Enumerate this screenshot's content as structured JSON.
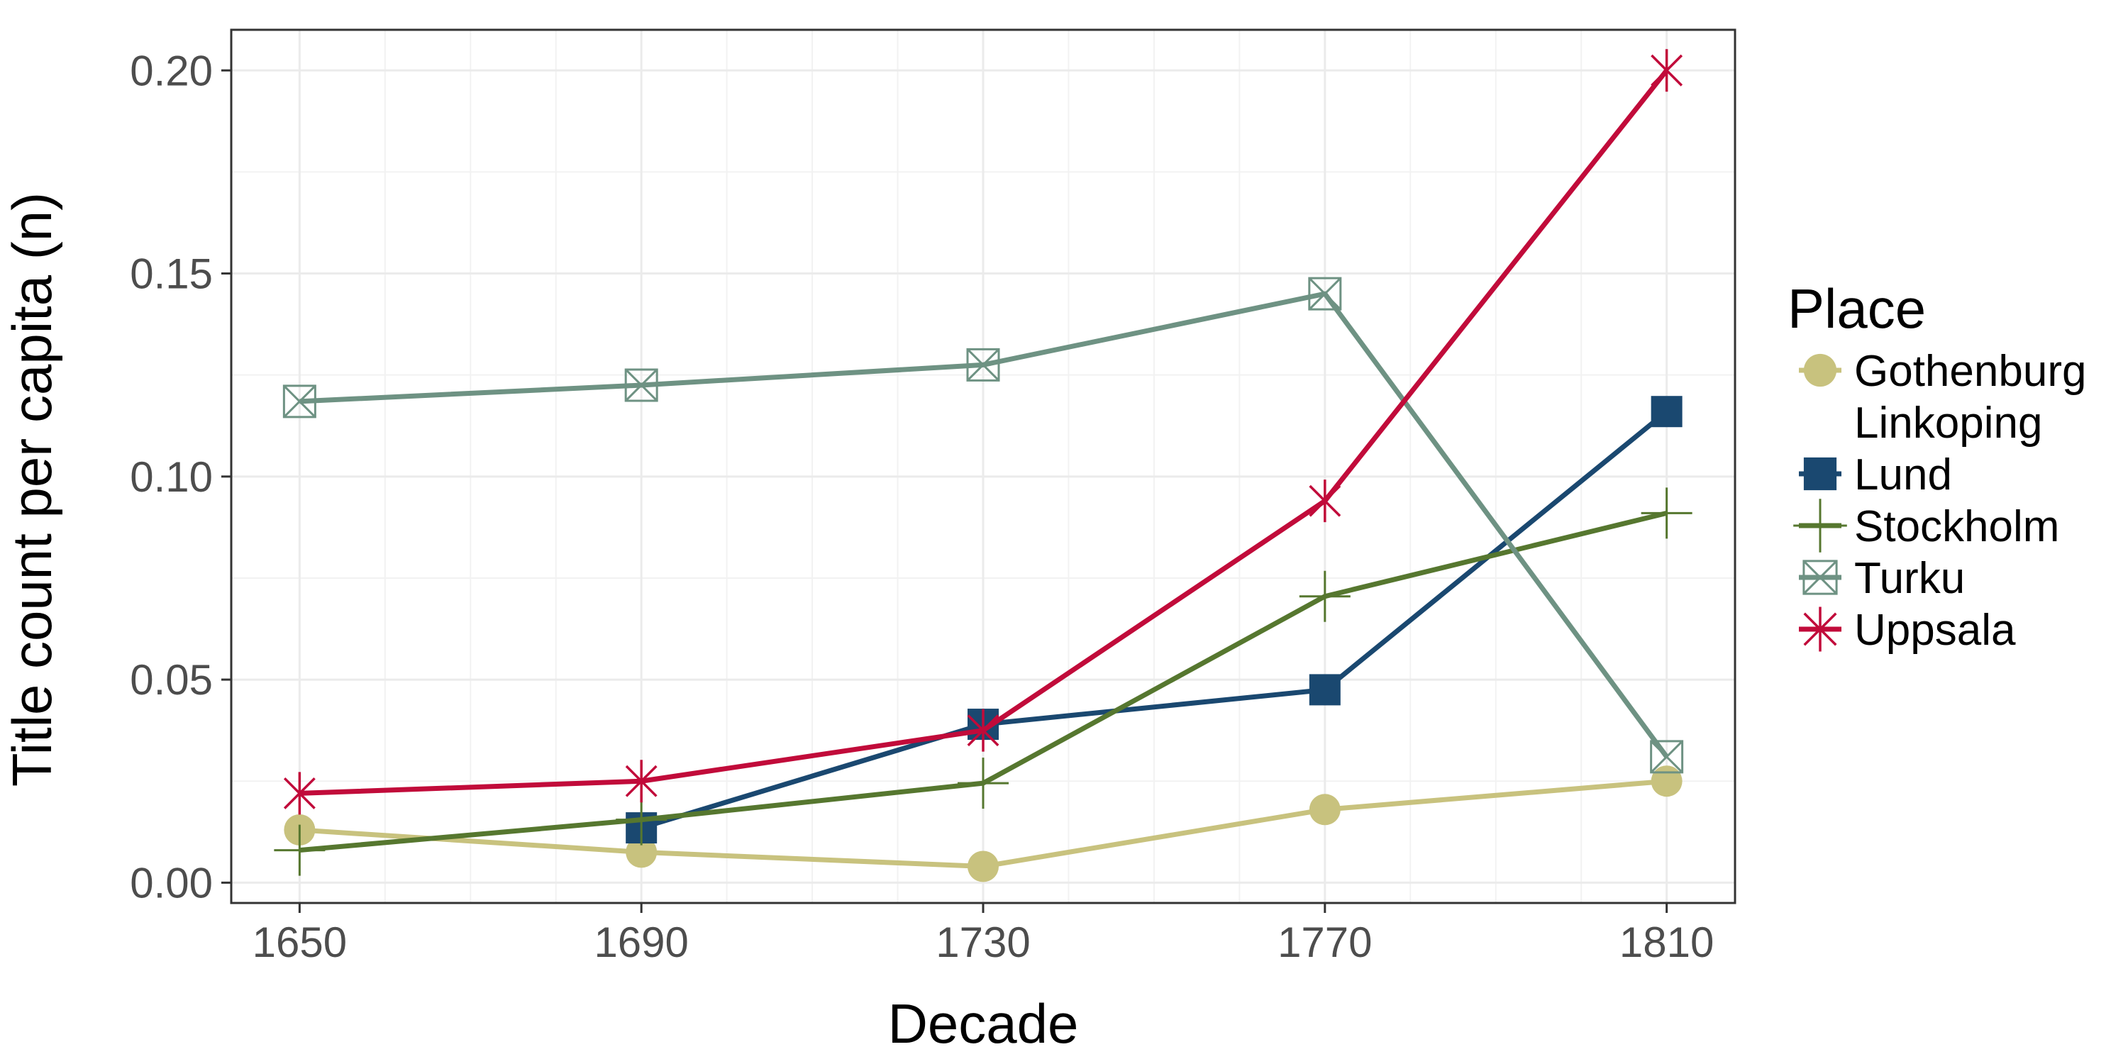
{
  "chart_data": {
    "type": "line",
    "xlabel": "Decade",
    "ylabel": "Title count per capita (n)",
    "x": [
      1650,
      1690,
      1730,
      1770,
      1810
    ],
    "x_tick_labels": [
      "1650",
      "1690",
      "1730",
      "1770",
      "1810"
    ],
    "y_tick_labels": [
      "0.00",
      "0.05",
      "0.10",
      "0.15",
      "0.20"
    ],
    "y_ticks": [
      0,
      0.05,
      0.1,
      0.15,
      0.2
    ],
    "xlim": [
      1642,
      1818
    ],
    "ylim": [
      -0.005,
      0.21
    ],
    "grid": true,
    "legend": {
      "title": "Place",
      "position": "right"
    },
    "series": [
      {
        "name": "Gothenburg",
        "color": "#c8c27e",
        "marker": "circle",
        "values": [
          0.013,
          0.0075,
          0.004,
          0.018,
          0.025
        ]
      },
      {
        "name": "Linkoping",
        "color": "#ffffff",
        "marker": "none",
        "values": [
          null,
          null,
          null,
          null,
          null
        ]
      },
      {
        "name": "Lund",
        "color": "#1a4870",
        "marker": "square",
        "values": [
          null,
          0.0135,
          0.039,
          0.0475,
          0.116
        ]
      },
      {
        "name": "Stockholm",
        "color": "#56772f",
        "marker": "plus",
        "values": [
          0.008,
          0.0155,
          0.0245,
          0.0705,
          0.091
        ]
      },
      {
        "name": "Turku",
        "color": "#6e9283",
        "marker": "square-cross",
        "values": [
          0.1185,
          0.1225,
          0.1275,
          0.145,
          0.031
        ]
      },
      {
        "name": "Uppsala",
        "color": "#c10b3a",
        "marker": "asterisk",
        "values": [
          0.022,
          0.025,
          0.0375,
          0.094,
          0.2
        ]
      }
    ]
  }
}
